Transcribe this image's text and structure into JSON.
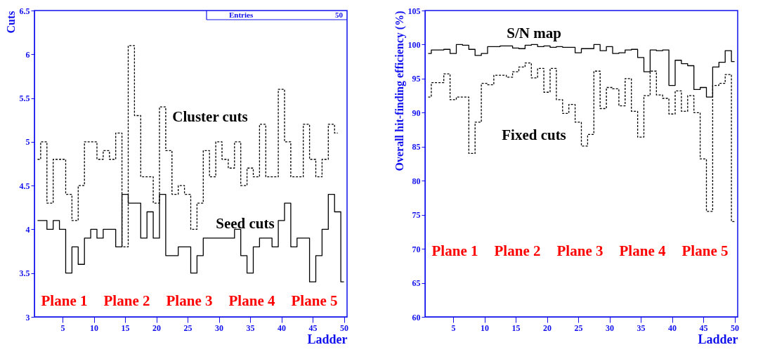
{
  "chart_data": [
    {
      "type": "step",
      "xlabel": "Ladder",
      "ylabel": "Cuts",
      "x": [
        1,
        2,
        3,
        4,
        5,
        6,
        7,
        8,
        9,
        10,
        11,
        12,
        13,
        14,
        15,
        16,
        17,
        18,
        19,
        20,
        21,
        22,
        23,
        24,
        25,
        26,
        27,
        28,
        29,
        30,
        31,
        32,
        33,
        34,
        35,
        36,
        37,
        38,
        39,
        40,
        41,
        42,
        43,
        44,
        45,
        46,
        47,
        48,
        49,
        50
      ],
      "xlim": [
        0.5,
        50.5
      ],
      "xticks": [
        5,
        10,
        15,
        20,
        25,
        30,
        35,
        40,
        45,
        50
      ],
      "ylim": [
        3,
        6.5
      ],
      "yticks": [
        3,
        3.5,
        4,
        4.5,
        5,
        5.5,
        6,
        6.5
      ],
      "series": [
        {
          "name": "Cluster cuts",
          "color": "#000000",
          "line_style": "dashed",
          "values": [
            4.8,
            5.0,
            4.3,
            4.8,
            4.8,
            4.4,
            4.1,
            4.5,
            5.0,
            5.0,
            4.8,
            4.9,
            4.8,
            5.1,
            3.8,
            6.1,
            5.3,
            4.6,
            4.6,
            4.3,
            5.4,
            4.9,
            4.4,
            4.5,
            4.4,
            4.0,
            4.3,
            4.9,
            4.6,
            5.0,
            4.8,
            4.7,
            5.0,
            4.5,
            4.7,
            4.6,
            5.2,
            4.6,
            4.6,
            5.6,
            5.0,
            4.6,
            4.6,
            5.2,
            4.8,
            4.6,
            4.8,
            5.2,
            5.1,
            null
          ]
        },
        {
          "name": "Seed cuts",
          "color": "#000000",
          "line_style": "solid",
          "values": [
            4.1,
            4.1,
            4.0,
            4.1,
            4.0,
            3.5,
            3.8,
            3.6,
            3.9,
            4.0,
            3.9,
            4.0,
            4.0,
            3.8,
            4.4,
            4.3,
            4.3,
            3.9,
            4.2,
            3.9,
            4.4,
            3.7,
            3.7,
            3.8,
            3.8,
            3.5,
            3.7,
            3.9,
            3.9,
            3.9,
            3.9,
            3.9,
            4.0,
            3.7,
            3.5,
            3.8,
            3.9,
            3.9,
            3.8,
            4.1,
            4.3,
            3.8,
            3.9,
            3.9,
            3.4,
            3.7,
            4.0,
            4.4,
            4.2,
            3.4
          ]
        }
      ],
      "annotations": [
        "Plane 1",
        "Plane 2",
        "Plane 3",
        "Plane 4",
        "Plane 5",
        "Entries",
        "50"
      ]
    },
    {
      "type": "step",
      "xlabel": "Ladder",
      "ylabel": "Overall hit-finding efficiency (%)",
      "x": [
        1,
        2,
        3,
        4,
        5,
        6,
        7,
        8,
        9,
        10,
        11,
        12,
        13,
        14,
        15,
        16,
        17,
        18,
        19,
        20,
        21,
        22,
        23,
        24,
        25,
        26,
        27,
        28,
        29,
        30,
        31,
        32,
        33,
        34,
        35,
        36,
        37,
        38,
        39,
        40,
        41,
        42,
        43,
        44,
        45,
        46,
        47,
        48,
        49,
        50
      ],
      "xlim": [
        0.5,
        50.5
      ],
      "xticks": [
        5,
        10,
        15,
        20,
        25,
        30,
        35,
        40,
        45,
        50
      ],
      "ylim": [
        60,
        105
      ],
      "yticks": [
        60,
        65,
        70,
        75,
        80,
        85,
        90,
        95,
        100,
        105
      ],
      "series": [
        {
          "name": "S/N map",
          "color": "#000000",
          "line_style": "solid",
          "values": [
            98.7,
            99.2,
            99.2,
            99.3,
            98.7,
            100.0,
            99.9,
            99.3,
            98.4,
            98.7,
            99.7,
            99.7,
            99.8,
            99.8,
            99.5,
            99.4,
            99.9,
            100.0,
            99.7,
            99.8,
            99.6,
            99.7,
            99.6,
            99.6,
            98.8,
            99.4,
            99.4,
            100.0,
            99.1,
            99.7,
            98.7,
            98.8,
            99.2,
            99.3,
            98.1,
            96.0,
            99.2,
            99.1,
            99.2,
            94.0,
            97.7,
            97.2,
            96.9,
            93.4,
            93.7,
            92.3,
            96.7,
            97.4,
            99.1,
            97.5
          ]
        },
        {
          "name": "Fixed cuts",
          "color": "#000000",
          "line_style": "dashed",
          "values": [
            92.3,
            94.4,
            94.4,
            95.7,
            91.9,
            92.3,
            92.3,
            84.0,
            88.6,
            94.3,
            94.1,
            95.5,
            95.5,
            95.2,
            96.0,
            96.7,
            97.3,
            95.1,
            96.5,
            93.0,
            96.5,
            91.9,
            89.9,
            91.2,
            88.6,
            85.1,
            86.8,
            96.1,
            90.6,
            93.7,
            93.5,
            91.0,
            95.0,
            90.2,
            86.4,
            92.5,
            96.1,
            92.6,
            92.1,
            89.8,
            93.2,
            90.2,
            92.5,
            90.0,
            83.2,
            75.5,
            94.0,
            94.3,
            95.6,
            74.0
          ]
        }
      ],
      "annotations": [
        "Plane 1",
        "Plane 2",
        "Plane 3",
        "Plane 4",
        "Plane 5"
      ]
    }
  ]
}
